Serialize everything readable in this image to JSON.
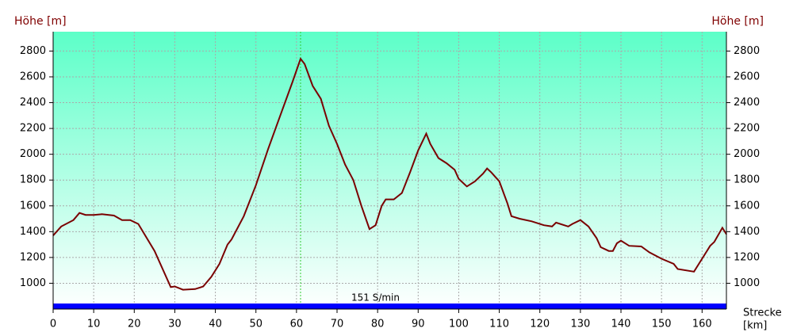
{
  "chart_data": {
    "type": "line",
    "y_label_left": "Höhe [m]",
    "y_label_right": "Höhe [m]",
    "x_label_lines": [
      "Strecke",
      "[km]"
    ],
    "annotation": "151 S/min",
    "color": "#7a0000",
    "bar_color": "#0000ff",
    "marker_color": "#33cc33",
    "marker_x": 61,
    "grid": true,
    "xlim": [
      0,
      166
    ],
    "xticks": [
      0,
      10,
      20,
      30,
      40,
      50,
      60,
      70,
      80,
      90,
      100,
      110,
      120,
      130,
      140,
      150,
      160
    ],
    "ylim": [
      800,
      2950
    ],
    "yticks": [
      1000,
      1200,
      1400,
      1600,
      1800,
      2000,
      2200,
      2400,
      2600,
      2800
    ],
    "x": [
      0,
      2,
      5,
      6.5,
      8,
      10,
      12,
      15,
      17,
      19,
      21,
      25,
      29,
      30,
      32,
      35,
      37,
      39,
      41,
      43,
      44,
      47,
      50,
      53,
      56,
      59,
      61,
      62,
      64,
      66,
      68,
      70,
      72,
      74,
      76,
      78,
      79.5,
      81,
      82,
      84,
      86,
      88,
      90,
      92,
      93,
      95,
      97,
      99,
      100,
      102,
      104,
      106,
      107,
      108,
      110,
      112,
      113,
      115,
      118,
      121,
      123,
      124,
      127,
      128,
      130,
      132,
      134,
      135,
      137,
      138,
      139,
      140,
      142,
      145,
      147,
      150,
      153,
      154,
      158,
      160,
      162,
      163,
      165,
      166
    ],
    "values": [
      1370,
      1440,
      1490,
      1545,
      1530,
      1530,
      1535,
      1525,
      1490,
      1490,
      1460,
      1250,
      970,
      975,
      950,
      955,
      975,
      1050,
      1150,
      1300,
      1340,
      1520,
      1760,
      2040,
      2300,
      2560,
      2740,
      2700,
      2530,
      2430,
      2220,
      2080,
      1920,
      1800,
      1600,
      1420,
      1450,
      1600,
      1650,
      1650,
      1700,
      1860,
      2030,
      2160,
      2080,
      1970,
      1930,
      1880,
      1810,
      1750,
      1790,
      1850,
      1890,
      1860,
      1790,
      1620,
      1520,
      1500,
      1480,
      1450,
      1440,
      1470,
      1440,
      1460,
      1490,
      1440,
      1350,
      1280,
      1250,
      1250,
      1310,
      1330,
      1290,
      1285,
      1240,
      1190,
      1150,
      1110,
      1090,
      1190,
      1290,
      1320,
      1430,
      1380
    ]
  }
}
